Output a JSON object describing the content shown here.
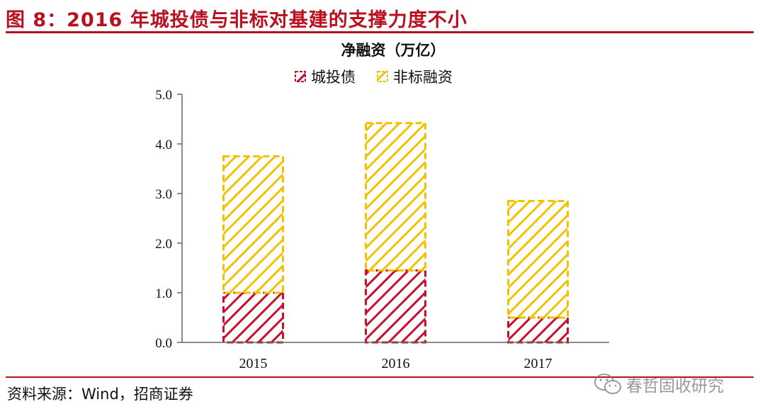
{
  "figure": {
    "title": "图 8：2016 年城投债与非标对基建的支撑力度不小",
    "source": "资料来源：Wind，招商证券",
    "watermark": "春哲固收研究",
    "accent_color": "#b8101f"
  },
  "chart_data": {
    "type": "bar",
    "stacked": true,
    "title": "净融资（万亿）",
    "categories": [
      "2015",
      "2016",
      "2017"
    ],
    "series": [
      {
        "name": "城投债",
        "values": [
          1.0,
          1.45,
          0.5
        ],
        "color": "#c8102e",
        "pattern": "diagonal-hatch-dashed"
      },
      {
        "name": "非标融资",
        "values": [
          2.75,
          2.97,
          2.35
        ],
        "color": "#f2c200",
        "pattern": "diagonal-hatch-dashed"
      }
    ],
    "ylim": [
      0,
      5
    ],
    "yticks": [
      0,
      1,
      2,
      3,
      4,
      5
    ],
    "ytick_labels": [
      "0.0",
      "1.0",
      "2.0",
      "3.0",
      "4.0",
      "5.0"
    ],
    "xlabel": "",
    "ylabel": "",
    "grid": false,
    "legend_position": "top-center"
  }
}
